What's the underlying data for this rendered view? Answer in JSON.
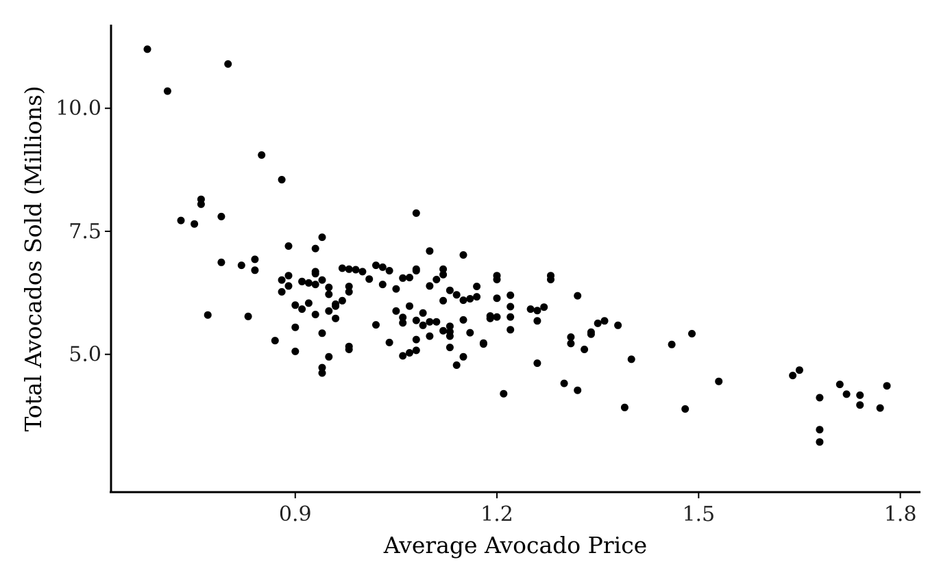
{
  "chart_data": {
    "type": "scatter",
    "title": "",
    "xlabel": "Average Avocado Price",
    "ylabel": "Total Avocados Sold (Millions)",
    "xlim": [
      0.626,
      1.83
    ],
    "ylim": [
      2.2,
      11.7
    ],
    "xticks": [
      0.9,
      1.2,
      1.5,
      1.8
    ],
    "xtick_labels": [
      "0.9",
      "1.2",
      "1.5",
      "1.8"
    ],
    "yticks": [
      5.0,
      7.5,
      10.0
    ],
    "ytick_labels": [
      "5.0",
      "7.5",
      "10.0"
    ],
    "grid": false,
    "legend": "none",
    "point_color": "#000000",
    "series": [
      {
        "x": [
          0.68,
          0.71,
          0.8,
          0.85,
          0.88,
          0.76,
          0.76,
          0.73,
          0.75,
          0.79,
          0.79,
          0.77,
          0.82,
          0.84,
          0.84,
          0.83,
          0.87,
          0.88,
          0.88,
          0.89,
          0.89,
          0.89,
          0.9,
          0.9,
          0.9,
          0.91,
          0.91,
          0.92,
          0.92,
          0.93,
          0.93,
          0.93,
          0.93,
          0.93,
          0.94,
          0.94,
          0.94,
          0.94,
          0.94,
          0.95,
          0.95,
          0.95,
          0.95,
          0.96,
          0.96,
          0.96,
          0.97,
          0.97,
          0.98,
          0.98,
          0.98,
          0.98,
          0.98,
          0.99,
          1.0,
          1.01,
          1.02,
          1.02,
          1.03,
          1.03,
          1.04,
          1.04,
          1.05,
          1.05,
          1.06,
          1.06,
          1.06,
          1.06,
          1.07,
          1.07,
          1.07,
          1.08,
          1.08,
          1.08,
          1.08,
          1.08,
          1.09,
          1.09,
          1.1,
          1.1,
          1.1,
          1.1,
          1.11,
          1.11,
          1.12,
          1.12,
          1.12,
          1.12,
          1.13,
          1.13,
          1.13,
          1.13,
          1.13,
          1.14,
          1.14,
          1.15,
          1.15,
          1.15,
          1.15,
          1.16,
          1.16,
          1.17,
          1.17,
          1.18,
          1.18,
          1.19,
          1.19,
          1.2,
          1.2,
          1.2,
          1.2,
          1.21,
          1.22,
          1.22,
          1.22,
          1.22,
          1.25,
          1.26,
          1.26,
          1.26,
          1.27,
          1.28,
          1.28,
          1.3,
          1.31,
          1.31,
          1.32,
          1.32,
          1.33,
          1.34,
          1.34,
          1.35,
          1.36,
          1.38,
          1.39,
          1.4,
          1.46,
          1.48,
          1.49,
          1.53,
          1.64,
          1.65,
          1.68,
          1.68,
          1.68,
          1.71,
          1.72,
          1.74,
          1.74,
          1.77,
          1.78,
          1.08
        ],
        "y": [
          11.2,
          10.35,
          10.9,
          9.05,
          8.55,
          8.15,
          8.05,
          7.72,
          7.65,
          7.8,
          6.87,
          5.8,
          6.81,
          6.93,
          6.71,
          5.77,
          5.28,
          6.51,
          6.27,
          6.6,
          6.39,
          7.2,
          6.0,
          5.55,
          5.06,
          6.48,
          5.92,
          6.45,
          6.04,
          7.15,
          6.68,
          6.64,
          6.42,
          5.81,
          7.38,
          6.51,
          5.43,
          4.73,
          4.62,
          6.36,
          6.22,
          5.88,
          4.95,
          6.02,
          5.98,
          5.73,
          6.75,
          6.09,
          6.73,
          6.38,
          6.27,
          5.16,
          5.1,
          6.72,
          6.68,
          6.53,
          6.81,
          5.6,
          6.77,
          6.42,
          6.7,
          5.24,
          6.33,
          5.88,
          6.55,
          5.75,
          5.64,
          4.97,
          6.56,
          5.98,
          5.03,
          6.73,
          6.7,
          5.69,
          5.3,
          5.08,
          5.84,
          5.59,
          7.1,
          6.39,
          5.66,
          5.37,
          6.52,
          5.66,
          6.73,
          6.62,
          6.09,
          5.48,
          6.3,
          5.57,
          5.46,
          5.37,
          5.14,
          6.21,
          4.78,
          7.02,
          6.1,
          5.7,
          4.95,
          6.13,
          5.44,
          6.38,
          6.17,
          5.23,
          5.21,
          5.78,
          5.73,
          6.6,
          6.52,
          6.14,
          5.76,
          4.2,
          6.2,
          5.97,
          5.76,
          5.5,
          5.92,
          5.89,
          5.68,
          4.82,
          5.96,
          6.6,
          6.52,
          4.41,
          5.35,
          5.22,
          6.19,
          4.27,
          5.1,
          5.45,
          5.41,
          5.63,
          5.68,
          5.59,
          3.92,
          4.9,
          5.2,
          3.89,
          5.42,
          4.45,
          4.57,
          4.68,
          4.12,
          3.47,
          3.22,
          4.39,
          4.19,
          4.17,
          3.97,
          3.91,
          4.36,
          7.87
        ]
      }
    ]
  }
}
